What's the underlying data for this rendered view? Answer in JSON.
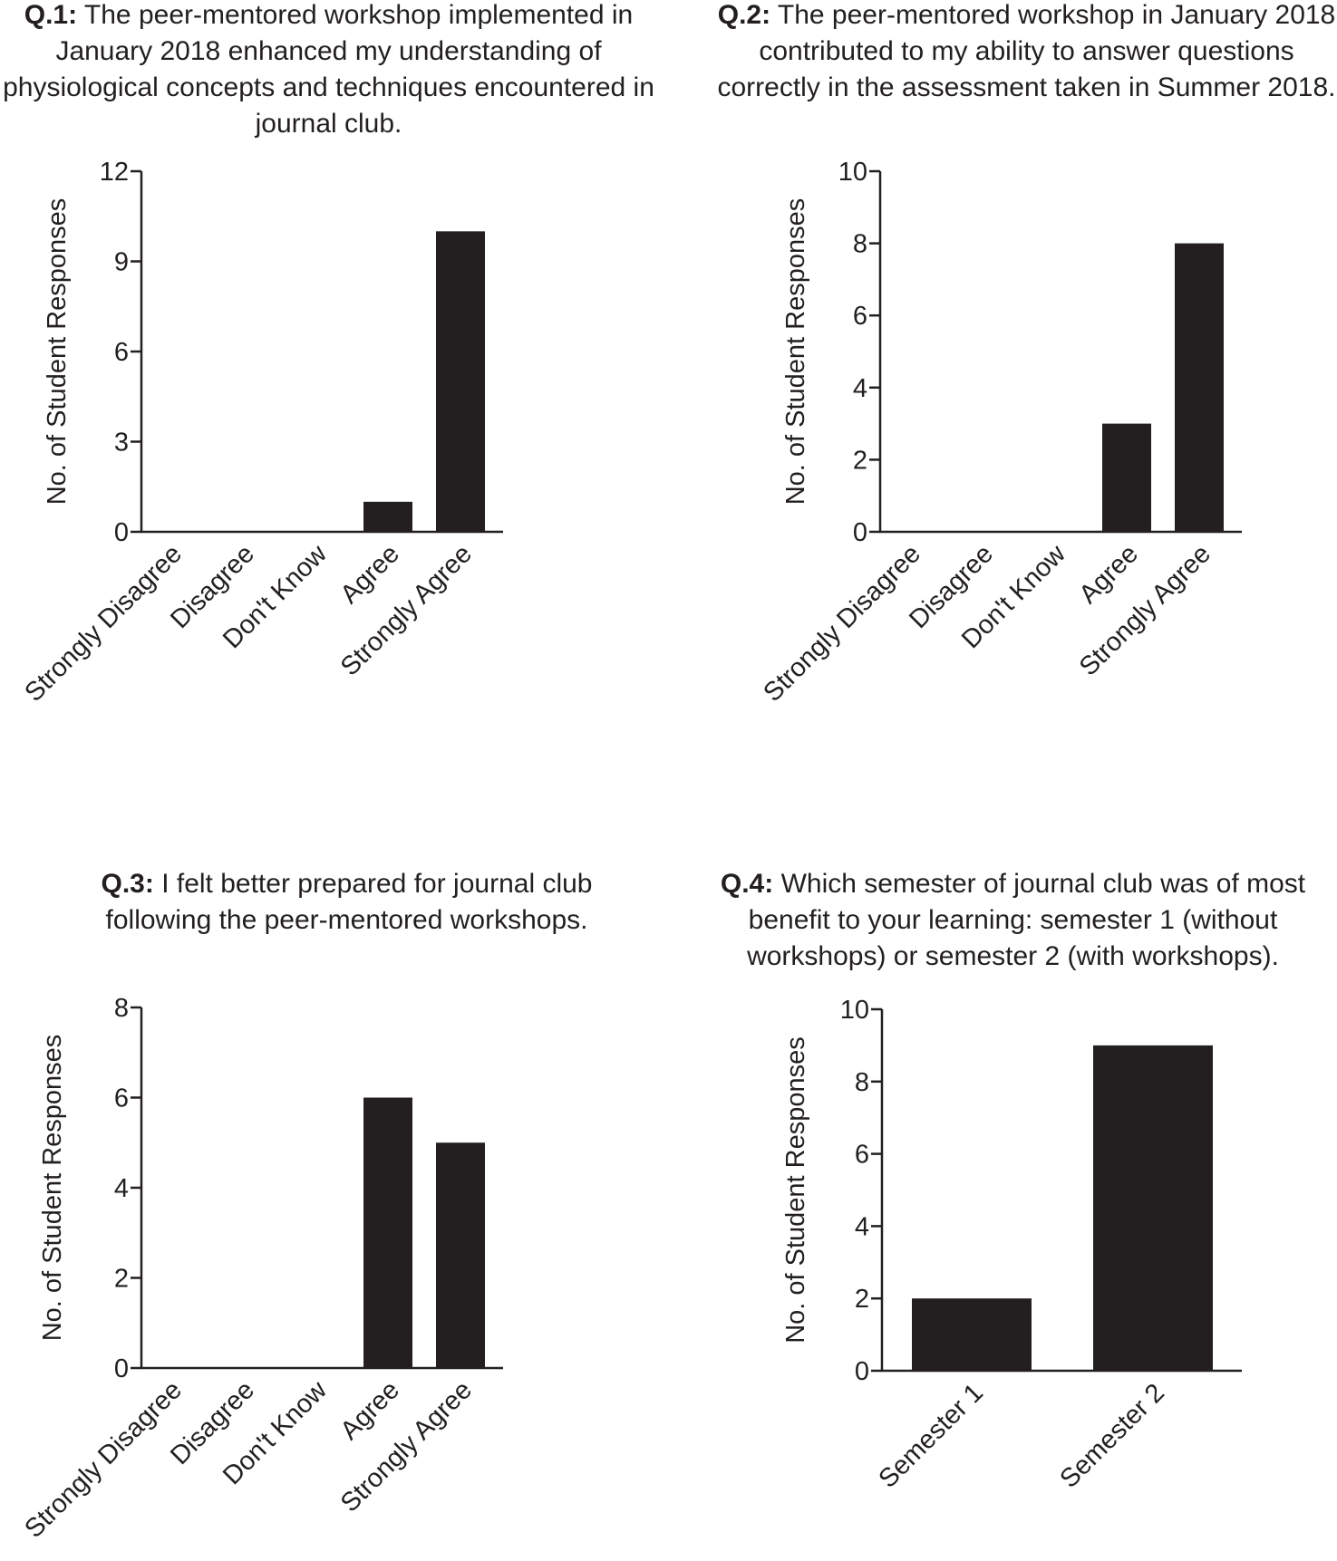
{
  "chart_data": [
    {
      "type": "bar",
      "title_prefix": "Q.1:",
      "title": "The peer-mentored workshop implemented in January 2018 enhanced my understanding of physiological concepts and techniques encountered in journal club.",
      "ylabel": "No. of Student Responses",
      "xlabel": "",
      "categories": [
        "Strongly Disagree",
        "Disagree",
        "Don't Know",
        "Agree",
        "Strongly Agree"
      ],
      "values": [
        0,
        0,
        0,
        1,
        10
      ],
      "ylim": [
        0,
        12
      ],
      "yticks": [
        0,
        3,
        6,
        9,
        12
      ],
      "bar_color": "#231f20"
    },
    {
      "type": "bar",
      "title_prefix": "Q.2:",
      "title": "The peer-mentored workshop in January 2018 contributed to my ability to answer questions correctly in the assessment taken in Summer 2018.",
      "ylabel": "No. of Student Responses",
      "xlabel": "",
      "categories": [
        "Strongly Disagree",
        "Disagree",
        "Don't Know",
        "Agree",
        "Strongly Agree"
      ],
      "values": [
        0,
        0,
        0,
        3,
        8
      ],
      "ylim": [
        0,
        10
      ],
      "yticks": [
        0,
        2,
        4,
        6,
        8,
        10
      ],
      "bar_color": "#231f20"
    },
    {
      "type": "bar",
      "title_prefix": "Q.3:",
      "title": "I felt better prepared for journal club following the peer-mentored workshops.",
      "ylabel": "No. of Student Responses",
      "xlabel": "",
      "categories": [
        "Strongly Disagree",
        "Disagree",
        "Don't Know",
        "Agree",
        "Strongly Agree"
      ],
      "values": [
        0,
        0,
        0,
        6,
        5
      ],
      "ylim": [
        0,
        8
      ],
      "yticks": [
        0,
        2,
        4,
        6,
        8
      ],
      "bar_color": "#231f20"
    },
    {
      "type": "bar",
      "title_prefix": "Q.4:",
      "title": "Which semester of journal club was of most benefit to your learning: semester 1 (without workshops) or semester 2 (with workshops).",
      "ylabel": "No. of Student Responses",
      "xlabel": "",
      "categories": [
        "Semester 1",
        "Semester 2"
      ],
      "values": [
        2,
        9
      ],
      "ylim": [
        0,
        10
      ],
      "yticks": [
        0,
        2,
        4,
        6,
        8,
        10
      ],
      "bar_color": "#231f20"
    }
  ]
}
